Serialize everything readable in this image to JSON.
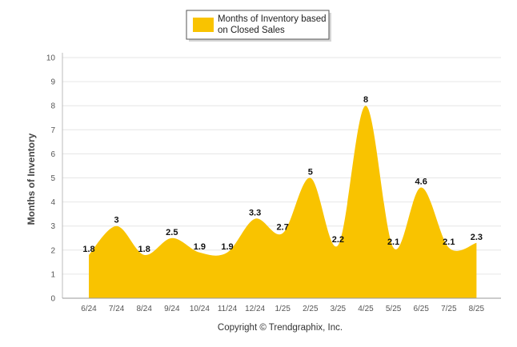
{
  "chart_data": {
    "type": "area",
    "categories": [
      "6/24",
      "7/24",
      "8/24",
      "9/24",
      "10/24",
      "11/24",
      "12/24",
      "1/25",
      "2/25",
      "3/25",
      "4/25",
      "5/25",
      "6/25",
      "7/25",
      "8/25"
    ],
    "series": [
      {
        "name": "Months of Inventory based on Closed Sales",
        "values": [
          1.8,
          3,
          1.8,
          2.5,
          1.9,
          1.9,
          3.3,
          2.7,
          5,
          2.2,
          8,
          2.1,
          4.6,
          2.1,
          2.3
        ],
        "labels": [
          "1.8",
          "3",
          "1.8",
          "2.5",
          "1.9",
          "1.9",
          "3.3",
          "2.7",
          "5",
          "2.2",
          "8",
          "2.1",
          "4.6",
          "2.1",
          "2.3"
        ],
        "color": "#F9C300"
      }
    ],
    "legend_lines": [
      "Months of Inventory based",
      "on Closed Sales"
    ],
    "legend_position": "top-center",
    "ylabel": "Months of Inventory",
    "ylim": [
      0,
      10
    ],
    "yticks": [
      "0",
      "1",
      "2",
      "3",
      "4",
      "5",
      "6",
      "7",
      "8",
      "9",
      "10"
    ],
    "grid": true,
    "copyright": "Copyright © Trendgraphix, Inc."
  }
}
